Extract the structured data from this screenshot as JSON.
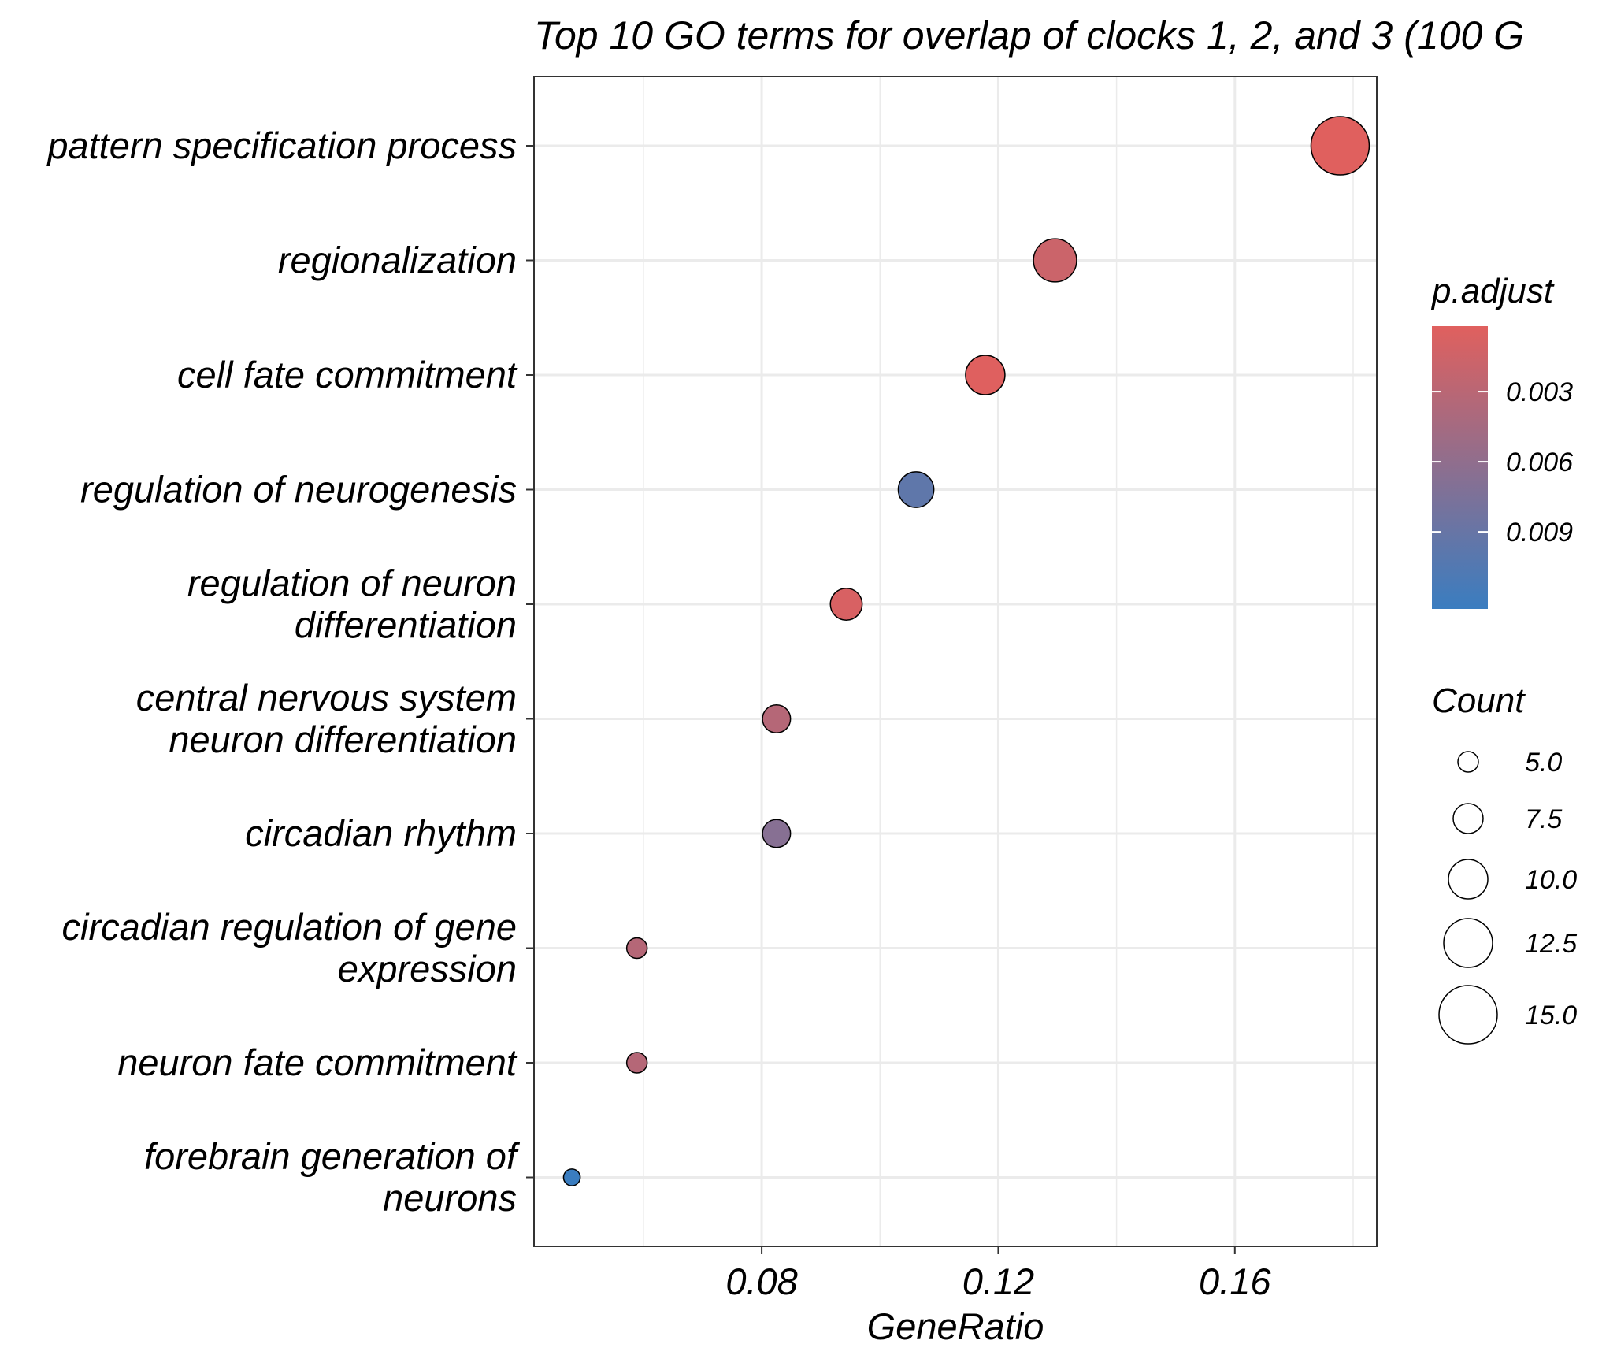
{
  "chart_data": {
    "type": "scatter",
    "title": "Top 10 GO terms for overlap of clocks 1, 2, and 3 (100 G",
    "xlabel": "GeneRatio",
    "ylabel": "",
    "xlim": [
      0.0415,
      0.184
    ],
    "x_ticks": [
      "0.08",
      "0.12",
      "0.16"
    ],
    "x_tick_values": [
      0.08,
      0.12,
      0.16
    ],
    "grid": true,
    "categories": [
      "pattern specification process",
      "regionalization",
      "cell fate commitment",
      "regulation of neurogenesis",
      "regulation of neuron\ndifferentiation",
      "central nervous system\nneuron differentiation",
      "circadian rhythm",
      "circadian regulation of gene\nexpression",
      "neuron fate commitment",
      "forebrain generation of\nneurons"
    ],
    "points": [
      {
        "term": "pattern specification process",
        "gene_ratio": 0.1778,
        "count": 15,
        "p_adjust": 0.0002
      },
      {
        "term": "regionalization",
        "gene_ratio": 0.1296,
        "count": 11,
        "p_adjust": 0.0017
      },
      {
        "term": "cell fate commitment",
        "gene_ratio": 0.1178,
        "count": 10,
        "p_adjust": 0.0003
      },
      {
        "term": "regulation of neurogenesis",
        "gene_ratio": 0.1061,
        "count": 9,
        "p_adjust": 0.0096
      },
      {
        "term": "regulation of neuron differentiation",
        "gene_ratio": 0.0943,
        "count": 8,
        "p_adjust": 0.0008
      },
      {
        "term": "central nervous system neuron differentiation",
        "gene_ratio": 0.0825,
        "count": 7,
        "p_adjust": 0.0033
      },
      {
        "term": "circadian rhythm",
        "gene_ratio": 0.0825,
        "count": 7,
        "p_adjust": 0.0067
      },
      {
        "term": "circadian regulation of gene expression",
        "gene_ratio": 0.0589,
        "count": 5,
        "p_adjust": 0.0033
      },
      {
        "term": "neuron fate commitment",
        "gene_ratio": 0.0589,
        "count": 5,
        "p_adjust": 0.0033
      },
      {
        "term": "forebrain generation of neurons",
        "gene_ratio": 0.0479,
        "count": 4,
        "p_adjust": 0.0123
      }
    ],
    "color_scale": {
      "title": "p.adjust",
      "low_color": "#e0605e",
      "high_color": "#3a7dc0",
      "domain": [
        0.0002,
        0.0123
      ],
      "ticks": [
        0.003,
        0.006,
        0.009
      ],
      "tick_labels": [
        "0.003",
        "0.006",
        "0.009"
      ]
    },
    "size_scale": {
      "title": "Count",
      "values": [
        5,
        7.5,
        10,
        12.5,
        15
      ],
      "labels": [
        "5.0",
        "7.5",
        "10.0",
        "12.5",
        "15.0"
      ]
    },
    "legend_position": "right"
  }
}
